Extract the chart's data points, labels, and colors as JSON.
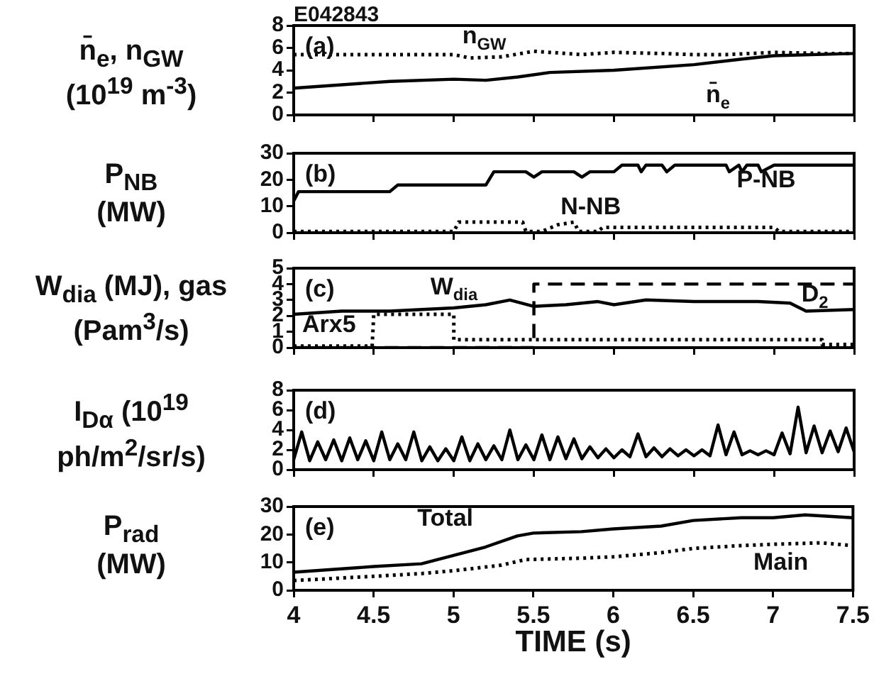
{
  "chart_data": [
    {
      "type": "line",
      "title": "E042843",
      "ylabel": "n̄$_{e}$, n$_{GW}$\n(10$^{19}$ m$^{-3}$)",
      "annotations": [
        "(a)",
        "n$_{GW}$",
        "n̄$_{e}$"
      ],
      "xlim": [
        4,
        7.5
      ],
      "xticks": [
        4,
        4.5,
        5,
        5.5,
        6,
        6.5,
        7,
        7.5
      ],
      "ylim": [
        0,
        8
      ],
      "yticks": [
        0,
        2,
        4,
        6,
        8
      ],
      "tick_labels": "y",
      "series": [
        {
          "color": "#000000",
          "line_style": "dotted",
          "x": [
            4,
            4.5,
            5,
            5.1,
            5.3,
            5.5,
            5.8,
            6,
            6.3,
            6.5,
            6.7,
            7,
            7.3,
            7.5
          ],
          "values": [
            5.4,
            5.4,
            5.4,
            5.1,
            5.2,
            5.7,
            5.4,
            5.6,
            5.5,
            5.4,
            5.4,
            5.6,
            5.5,
            5.5
          ]
        },
        {
          "color": "#000000",
          "line_style": "solid",
          "x": [
            4,
            4.3,
            4.6,
            5,
            5.2,
            5.4,
            5.6,
            6,
            6.5,
            6.8,
            7,
            7.5
          ],
          "values": [
            2.4,
            2.7,
            3,
            3.2,
            3.1,
            3.4,
            3.8,
            4,
            4.5,
            5,
            5.3,
            5.5
          ]
        }
      ]
    },
    {
      "type": "line",
      "ylabel": "P$_{NB}$\n(MW)",
      "annotations": [
        "(b)",
        "N-NB",
        "P-NB"
      ],
      "xlim": [
        4,
        7.5
      ],
      "xticks": [
        4,
        4.5,
        5,
        5.5,
        6,
        6.5,
        7,
        7.5
      ],
      "ylim": [
        0,
        30
      ],
      "yticks": [
        0,
        10,
        20,
        30
      ],
      "tick_labels": "y",
      "series": [
        {
          "color": "#000000",
          "line_style": "solid",
          "x": [
            4,
            4.03,
            4.6,
            4.65,
            5.2,
            5.25,
            5.45,
            5.5,
            5.55,
            5.75,
            5.8,
            5.85,
            6,
            6.05,
            6.15,
            6.17,
            6.2,
            6.3,
            6.33,
            6.38,
            6.7,
            6.72,
            6.78,
            6.8,
            6.83,
            6.9,
            6.92,
            7,
            7.5
          ],
          "values": [
            12,
            15.5,
            15.5,
            18,
            18,
            23,
            23,
            21,
            23,
            23,
            21,
            23,
            23,
            25.5,
            25.5,
            23,
            25.5,
            25.5,
            23,
            25.5,
            25.5,
            23,
            25.5,
            23,
            25.5,
            25.5,
            23,
            25.5,
            25.5
          ]
        },
        {
          "color": "#000000",
          "line_style": "dotted",
          "x": [
            4,
            5,
            5.03,
            5.43,
            5.45,
            5.55,
            5.65,
            5.75,
            5.78,
            5.9,
            5.93,
            7,
            7.03,
            7.5
          ],
          "values": [
            0.5,
            0.5,
            4,
            4,
            0.5,
            0.5,
            3,
            4,
            0.5,
            0.5,
            2,
            2,
            0.5,
            0.5
          ]
        }
      ]
    },
    {
      "type": "line",
      "ylabel": "W$_{dia}$ (MJ), gas\n(Pam$^{3}$/s)",
      "annotations": [
        "(c)",
        "W$_{dia}$",
        "D$_{2}$",
        "Arx5"
      ],
      "xlim": [
        4,
        7.5
      ],
      "xticks": [
        4,
        4.5,
        5,
        5.5,
        6,
        6.5,
        7,
        7.5
      ],
      "ylim": [
        0,
        5
      ],
      "yticks": [
        0,
        1,
        2,
        3,
        4,
        5
      ],
      "tick_labels": "y",
      "series": [
        {
          "color": "#000000",
          "line_style": "solid",
          "x": [
            4,
            4.3,
            4.6,
            5,
            5.2,
            5.35,
            5.5,
            5.7,
            5.9,
            6,
            6.2,
            6.5,
            6.9,
            7.1,
            7.2,
            7.5
          ],
          "values": [
            2.1,
            2.3,
            2.3,
            2.5,
            2.7,
            3,
            2.6,
            2.7,
            2.9,
            2.7,
            3,
            2.9,
            2.9,
            2.8,
            2.3,
            2.4
          ]
        },
        {
          "color": "#000000",
          "line_style": "dashed",
          "x": [
            4,
            5.5,
            5.5,
            7.5
          ],
          "values": [
            0,
            0,
            4,
            4
          ]
        },
        {
          "color": "#000000",
          "line_style": "dotted",
          "x": [
            4,
            4.49,
            4.5,
            5,
            5,
            7.3,
            7.3,
            7.5
          ],
          "values": [
            0.1,
            0.1,
            2.1,
            2.1,
            0.5,
            0.5,
            0.2,
            0.2
          ]
        }
      ]
    },
    {
      "type": "line",
      "ylabel": "I$_{Dα}$ (10$^{19}$\nph/m$^{2}$/sr/s)",
      "annotations": [
        "(d)"
      ],
      "xlim": [
        4,
        7.5
      ],
      "xticks": [
        4,
        4.5,
        5,
        5.5,
        6,
        6.5,
        7,
        7.5
      ],
      "ylim": [
        0,
        8
      ],
      "yticks": [
        0,
        2,
        4,
        6,
        8
      ],
      "tick_labels": "y",
      "series": [
        {
          "color": "#000000",
          "line_style": "solid",
          "x": [
            4,
            4.05,
            4.1,
            4.15,
            4.2,
            4.25,
            4.3,
            4.35,
            4.4,
            4.45,
            4.5,
            4.55,
            4.6,
            4.65,
            4.7,
            4.75,
            4.8,
            4.85,
            4.9,
            4.95,
            5,
            5.05,
            5.1,
            5.15,
            5.2,
            5.25,
            5.3,
            5.35,
            5.4,
            5.45,
            5.5,
            5.55,
            5.6,
            5.65,
            5.7,
            5.75,
            5.8,
            5.85,
            5.9,
            5.95,
            6,
            6.05,
            6.1,
            6.15,
            6.2,
            6.25,
            6.3,
            6.35,
            6.4,
            6.45,
            6.5,
            6.55,
            6.6,
            6.65,
            6.7,
            6.75,
            6.8,
            6.85,
            6.9,
            6.95,
            7,
            7.05,
            7.1,
            7.15,
            7.2,
            7.25,
            7.3,
            7.35,
            7.4,
            7.45,
            7.5
          ],
          "values": [
            1,
            3.8,
            0.9,
            2.8,
            1,
            3,
            0.9,
            3.2,
            1,
            2.9,
            0.9,
            3.8,
            1,
            2.6,
            1,
            3.8,
            0.9,
            2.3,
            0.9,
            2.1,
            0.9,
            3.3,
            0.9,
            2.6,
            1,
            2.4,
            1,
            4,
            1,
            2.5,
            1,
            3.5,
            1,
            3.3,
            1.1,
            3.1,
            1.1,
            2.3,
            1.2,
            2.1,
            1.2,
            2,
            1.3,
            3.6,
            1.3,
            2.2,
            1.3,
            2.1,
            1.4,
            2,
            1.4,
            2,
            1.4,
            4.5,
            1.5,
            3.8,
            1.5,
            1.9,
            1.5,
            1.9,
            1.5,
            3.7,
            1.6,
            6.3,
            1.7,
            4.4,
            1.7,
            3.9,
            1.8,
            4.2,
            1.8
          ]
        }
      ]
    },
    {
      "type": "line",
      "ylabel": "P$_{rad}$\n(MW)",
      "xlabel": "TIME (s)",
      "annotations": [
        "(e)",
        "Total",
        "Main"
      ],
      "xlim": [
        4,
        7.5
      ],
      "xticks": [
        4,
        4.5,
        5,
        5.5,
        6,
        6.5,
        7,
        7.5
      ],
      "ylim": [
        0,
        30
      ],
      "yticks": [
        0,
        10,
        20,
        30
      ],
      "series": [
        {
          "color": "#000000",
          "line_style": "solid",
          "x": [
            4,
            4.5,
            4.8,
            5,
            5.2,
            5.4,
            5.5,
            5.8,
            6,
            6.3,
            6.5,
            6.8,
            7,
            7.2,
            7.5
          ],
          "values": [
            6.5,
            8.5,
            9.5,
            12.5,
            15.5,
            19.5,
            20.5,
            21,
            22,
            23,
            25,
            26,
            26,
            27,
            26
          ]
        },
        {
          "color": "#000000",
          "line_style": "dotted",
          "x": [
            4,
            4.5,
            4.8,
            5,
            5.3,
            5.45,
            5.8,
            6,
            6.3,
            6.5,
            6.8,
            7,
            7.3,
            7.5
          ],
          "values": [
            3.5,
            5,
            6,
            7,
            9,
            11,
            11.5,
            12,
            13.5,
            15,
            16,
            16.5,
            17,
            16
          ]
        }
      ]
    }
  ]
}
